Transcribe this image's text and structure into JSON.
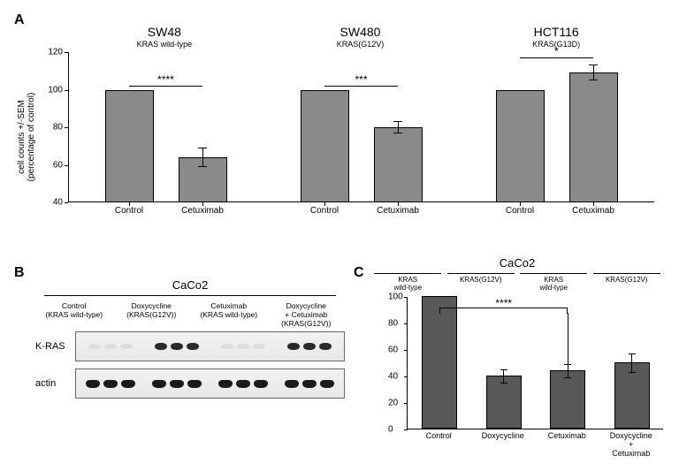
{
  "labels": {
    "A": "A",
    "B": "B",
    "C": "C"
  },
  "panelA": {
    "yaxis_label": "cell counts +/-SEM\n(percentage of control)",
    "ylim": [
      40,
      120
    ],
    "ytick_step": 20,
    "charts": [
      {
        "title": "SW48",
        "subtitle": "KRAS wild-type",
        "bars": [
          {
            "label": "Control",
            "value": 100,
            "err": 0
          },
          {
            "label": "Cetuximab",
            "value": 64,
            "err": 5
          }
        ],
        "sig": "****",
        "sig_y": 102
      },
      {
        "title": "SW480",
        "subtitle": "KRAS(G12V)",
        "bars": [
          {
            "label": "Control",
            "value": 100,
            "err": 0
          },
          {
            "label": "Cetuximab",
            "value": 80,
            "err": 3
          }
        ],
        "sig": "***",
        "sig_y": 102
      },
      {
        "title": "HCT116",
        "subtitle": "KRAS(G13D)",
        "bars": [
          {
            "label": "Control",
            "value": 100,
            "err": 0
          },
          {
            "label": "Cetuximab",
            "value": 109,
            "err": 4
          }
        ],
        "sig": "*",
        "sig_y": 117
      }
    ],
    "bar_color": "#8a8a8a",
    "bar_border": "#000000",
    "axis_color": "#000000",
    "background": "#ffffff",
    "title_fontsize": 14,
    "subtitle_fontsize": 9,
    "tick_fontsize": 10
  },
  "panelB": {
    "header": "CaCo2",
    "columns": [
      "Control\n(KRAS wild-type)",
      "Doxycycline\n(KRAS(G12V))",
      "Cetuximab\n(KRAS wild-type)",
      "Doxycycline\n+ Cetuximab\n(KRAS(G12V))"
    ],
    "rows": [
      {
        "label": "K-RAS",
        "intensity": [
          "faint",
          "strong",
          "faint",
          "strong"
        ]
      },
      {
        "label": "actin",
        "intensity": [
          "strong",
          "strong",
          "strong",
          "strong"
        ]
      }
    ],
    "band_color": "#2a2a2a",
    "box_border": "#666666"
  },
  "panelC": {
    "header": "CaCo2",
    "conditions": [
      "KRAS\nwild-type",
      "KRAS(G12V)",
      "KRAS\nwild-type",
      "KRAS(G12V)"
    ],
    "yaxis_label": "cell counts +/-SEM\n(percentage of control)",
    "ylim": [
      0,
      100
    ],
    "ytick_step": 20,
    "bars": [
      {
        "label": "Control",
        "value": 100,
        "err": 0
      },
      {
        "label": "Doxycycline",
        "value": 40,
        "err": 5
      },
      {
        "label": "Cetuximab",
        "value": 44,
        "err": 5
      },
      {
        "label": "Doxycycline\n+ Cetuximab",
        "value": 50,
        "err": 7
      }
    ],
    "sig": "****",
    "sig_from": 0,
    "sig_to": 2,
    "bar_color": "#585858"
  },
  "colors": {
    "background": "#ffffff",
    "text": "#000000"
  }
}
